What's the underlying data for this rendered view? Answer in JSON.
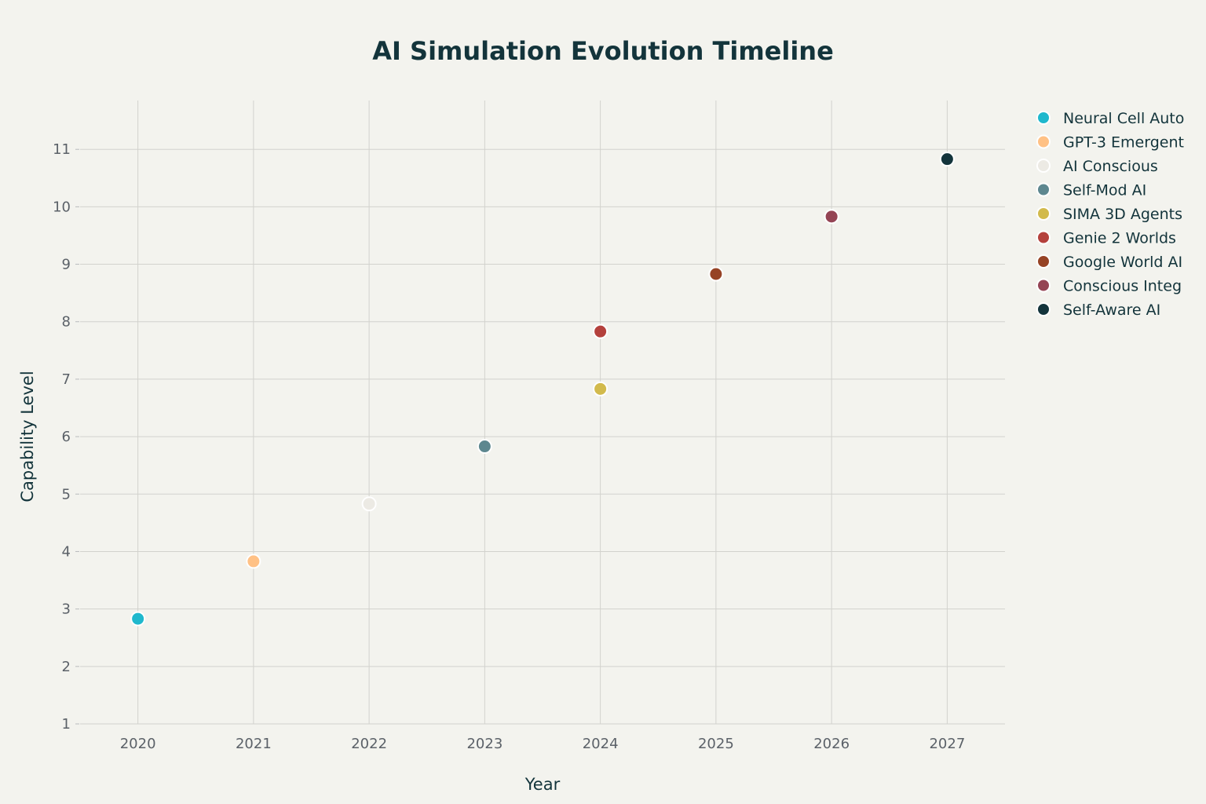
{
  "chart_data": {
    "type": "scatter",
    "title": "AI Simulation Evolution Timeline",
    "xlabel": "Year",
    "ylabel": "Capability Level",
    "xlim": [
      2019.5,
      2027.5
    ],
    "ylim": [
      1,
      11.85
    ],
    "x_ticks": [
      "2020",
      "2021",
      "2022",
      "2023",
      "2024",
      "2025",
      "2026",
      "2027"
    ],
    "y_ticks": [
      "1",
      "2",
      "3",
      "4",
      "5",
      "6",
      "7",
      "8",
      "9",
      "10",
      "11"
    ],
    "grid": true,
    "legend_position": "right",
    "series": [
      {
        "name": "Neural Cell Auto",
        "color": "#1fb8cd",
        "x": 2020,
        "y": 2.83
      },
      {
        "name": "GPT-3 Emergent",
        "color": "#ffc185",
        "x": 2021,
        "y": 3.83
      },
      {
        "name": "AI Conscious",
        "color": "#eceae4",
        "x": 2022,
        "y": 4.83
      },
      {
        "name": "Self-Mod AI",
        "color": "#5d878f",
        "x": 2023,
        "y": 5.83
      },
      {
        "name": "SIMA 3D Agents",
        "color": "#d2ba4c",
        "x": 2024,
        "y": 6.83
      },
      {
        "name": "Genie 2 Worlds",
        "color": "#b4413c",
        "x": 2024,
        "y": 7.83
      },
      {
        "name": "Google World AI",
        "color": "#964325",
        "x": 2025,
        "y": 8.83
      },
      {
        "name": "Conscious Integ",
        "color": "#944454",
        "x": 2026,
        "y": 9.83
      },
      {
        "name": "Self-Aware AI",
        "color": "#13343b",
        "x": 2027,
        "y": 10.83
      }
    ]
  }
}
